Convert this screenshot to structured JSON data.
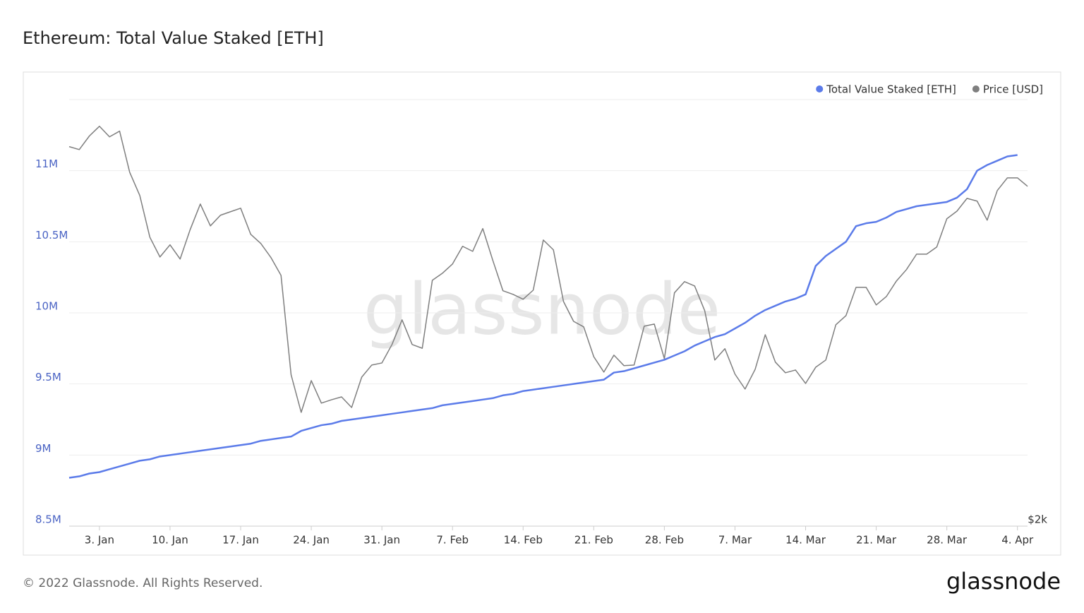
{
  "chart_data": {
    "type": "line",
    "title": "Ethereum: Total Value Staked [ETH]",
    "watermark": "glassnode",
    "footer": "© 2022 Glassnode. All Rights Reserved.",
    "logo": "glassnode",
    "categories": [
      null,
      null,
      null,
      "3. Jan",
      null,
      null,
      null,
      null,
      null,
      null,
      "10. Jan",
      null,
      null,
      null,
      null,
      null,
      null,
      "17. Jan",
      null,
      null,
      null,
      null,
      null,
      null,
      "24. Jan",
      null,
      null,
      null,
      null,
      null,
      null,
      "31. Jan",
      null,
      null,
      null,
      null,
      null,
      null,
      "7. Feb",
      null,
      null,
      null,
      null,
      null,
      null,
      "14. Feb",
      null,
      null,
      null,
      null,
      null,
      null,
      "21. Feb",
      null,
      null,
      null,
      null,
      null,
      null,
      "28. Feb",
      null,
      null,
      null,
      null,
      null,
      null,
      "7. Mar",
      null,
      null,
      null,
      null,
      null,
      null,
      "14. Mar",
      null,
      null,
      null,
      null,
      null,
      null,
      "21. Mar",
      null,
      null,
      null,
      null,
      null,
      null,
      "28. Mar",
      null,
      null,
      null,
      null,
      null,
      null,
      "4. Apr",
      null
    ],
    "series": [
      {
        "name": "Total Value Staked [ETH]",
        "color": "#5b7be9",
        "values": [
          8840000,
          8850000,
          8870000,
          8880000,
          8900000,
          8920000,
          8940000,
          8960000,
          8970000,
          8990000,
          9000000,
          9010000,
          9020000,
          9030000,
          9040000,
          9050000,
          9060000,
          9070000,
          9080000,
          9100000,
          9110000,
          9120000,
          9130000,
          9170000,
          9190000,
          9210000,
          9220000,
          9240000,
          9250000,
          9260000,
          9270000,
          9280000,
          9290000,
          9300000,
          9310000,
          9320000,
          9330000,
          9350000,
          9360000,
          9370000,
          9380000,
          9390000,
          9400000,
          9420000,
          9430000,
          9450000,
          9460000,
          9470000,
          9480000,
          9490000,
          9500000,
          9510000,
          9520000,
          9530000,
          9580000,
          9590000,
          9610000,
          9630000,
          9650000,
          9670000,
          9700000,
          9730000,
          9770000,
          9800000,
          9830000,
          9850000,
          9890000,
          9930000,
          9980000,
          10020000,
          10050000,
          10080000,
          10100000,
          10130000,
          10330000,
          10400000,
          10450000,
          10500000,
          10610000,
          10630000,
          10640000,
          10670000,
          10710000,
          10730000,
          10750000,
          10760000,
          10770000,
          10780000,
          10810000,
          10870000,
          11000000,
          11040000,
          11070000,
          11100000,
          11110000,
          null
        ]
      },
      {
        "name": "Price [USD]",
        "color": "#7f7f7f",
        "axis": "y2",
        "values": [
          3788,
          3769,
          3856,
          3920,
          3851,
          3888,
          3628,
          3489,
          3252,
          3146,
          3211,
          3135,
          3295,
          3439,
          3315,
          3375,
          3395,
          3415,
          3268,
          3218,
          3143,
          3050,
          2580,
          2422,
          2555,
          2460,
          2474,
          2486,
          2442,
          2570,
          2623,
          2632,
          2715,
          2830,
          2715,
          2698,
          3025,
          3061,
          3109,
          3203,
          3176,
          3300,
          3127,
          2972,
          2954,
          2930,
          2975,
          3237,
          3184,
          2919,
          2823,
          2797,
          2660,
          2592,
          2667,
          2620,
          2623,
          2800,
          2810,
          2651,
          2962,
          3018,
          2996,
          2874,
          2645,
          2696,
          2583,
          2519,
          2604,
          2760,
          2636,
          2589,
          2601,
          2543,
          2613,
          2645,
          2807,
          2850,
          2989,
          2989,
          2902,
          2943,
          3021,
          3080,
          3161,
          3161,
          3199,
          3355,
          3398,
          3472,
          3456,
          3347,
          3518,
          3594,
          3594,
          3543
        ]
      }
    ],
    "ylim": [
      8500000,
      11500000
    ],
    "yticks": [
      {
        "value": 8500000,
        "label": "8.5M"
      },
      {
        "value": 9000000,
        "label": "9M"
      },
      {
        "value": 9500000,
        "label": "9.5M"
      },
      {
        "value": 10000000,
        "label": "10M"
      },
      {
        "value": 10500000,
        "label": "10.5M"
      },
      {
        "value": 11000000,
        "label": "11M"
      }
    ],
    "y2lim": [
      2000,
      4100
    ],
    "y2log": true,
    "y2ticks": [
      {
        "value": 2000,
        "label": "$2k"
      }
    ],
    "grid": true,
    "legend": "top-right"
  }
}
